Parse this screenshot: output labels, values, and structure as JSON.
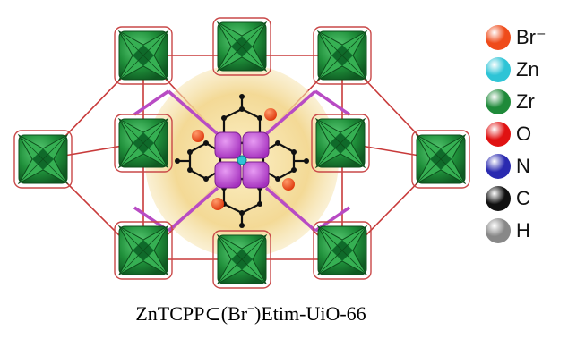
{
  "caption": {
    "text_before": "ZnTCPP⊂(Br",
    "superscript": "−",
    "text_after": ")Etim-UiO-66"
  },
  "legend": [
    {
      "label": "Br⁻",
      "color": "#ef4b1a",
      "icon": "bromide-ball-icon"
    },
    {
      "label": "Zn",
      "color": "#2ec4d6",
      "icon": "zinc-ball-icon"
    },
    {
      "label": "Zr",
      "color": "#1f8a3a",
      "icon": "zirconium-ball-icon"
    },
    {
      "label": "O",
      "color": "#e01212",
      "icon": "oxygen-ball-icon"
    },
    {
      "label": "N",
      "color": "#2a2ab0",
      "icon": "nitrogen-ball-icon"
    },
    {
      "label": "C",
      "color": "#111111",
      "icon": "carbon-ball-icon"
    },
    {
      "label": "H",
      "color": "#888888",
      "icon": "hydrogen-ball-icon"
    }
  ],
  "colors": {
    "cage_sphere": "#f2d58a",
    "zr_cluster": "#1f8f3a",
    "linker": "#c83a3a",
    "porphyrin_core": "#b73fc9",
    "pore_lines": "#b84bc4",
    "bromide": "#ef4b1a",
    "zinc": "#2ec4d6"
  }
}
